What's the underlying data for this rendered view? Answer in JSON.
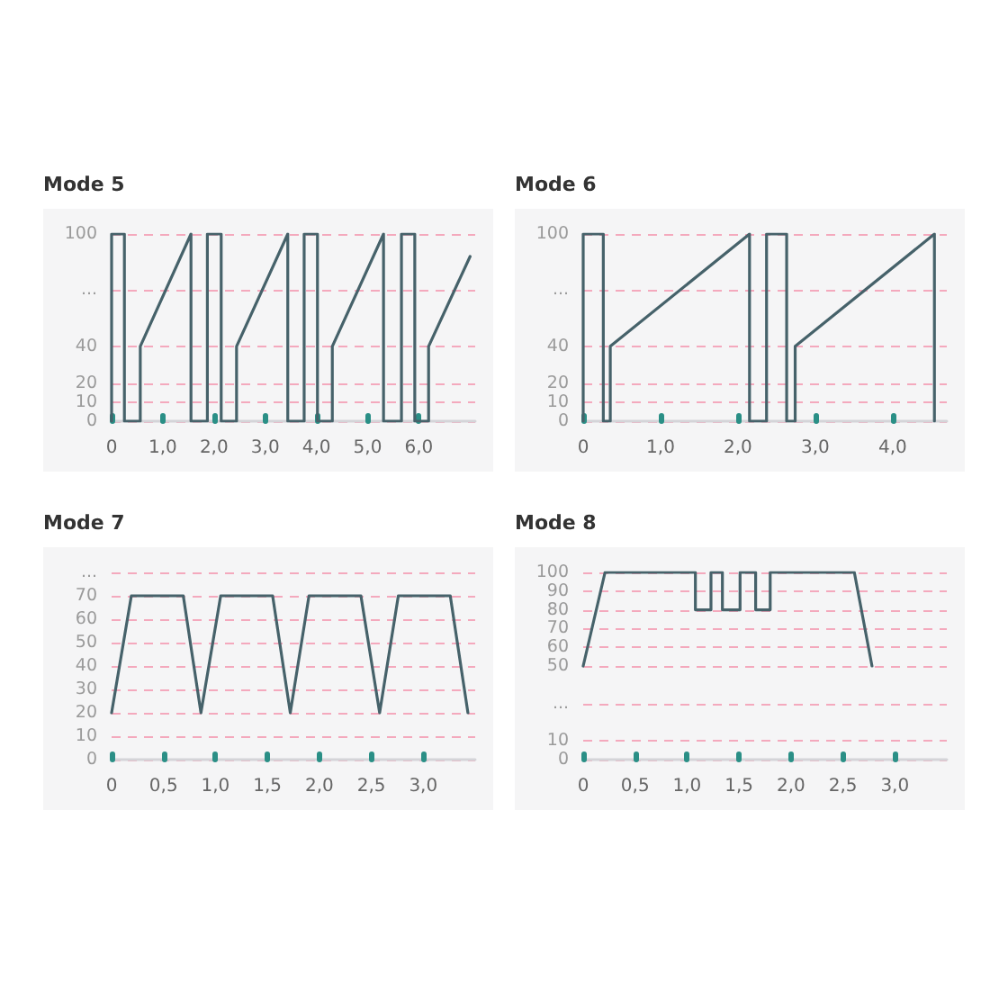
{
  "chart_data": [
    {
      "type": "line",
      "title": "Mode 5",
      "color": "#46626a",
      "grid": "y",
      "x": [
        0,
        0,
        0.25,
        0.25,
        0.56,
        0.56,
        1.55,
        1.55,
        1.87,
        1.87,
        2.14,
        2.14,
        2.44,
        2.44,
        3.44,
        3.44,
        3.76,
        3.76,
        4.02,
        4.02,
        4.31,
        4.31,
        5.31,
        5.31,
        5.66,
        5.66,
        5.92,
        5.92,
        6.19,
        6.19,
        7.0
      ],
      "values": [
        0,
        100,
        100,
        0,
        0,
        40,
        100,
        0,
        0,
        100,
        100,
        0,
        0,
        40,
        100,
        0,
        0,
        100,
        100,
        0,
        0,
        40,
        100,
        0,
        0,
        100,
        100,
        0,
        0,
        40,
        88
      ],
      "xlim": [
        0,
        7.1
      ],
      "xticks": [
        {
          "value": 0,
          "label": "0"
        },
        {
          "value": 1,
          "label": "1,0"
        },
        {
          "value": 2,
          "label": "2,0"
        },
        {
          "value": 3,
          "label": "3,0"
        },
        {
          "value": 4,
          "label": "4,0"
        },
        {
          "value": 5,
          "label": "5,0"
        },
        {
          "value": 6,
          "label": "6,0"
        }
      ],
      "ylim": [
        0,
        100
      ],
      "yticks": [
        0,
        10,
        20,
        40,
        {
          "value": 70,
          "label": "..."
        },
        100
      ]
    },
    {
      "type": "line",
      "title": "Mode 6",
      "color": "#46626a",
      "grid": "y",
      "x": [
        0,
        0,
        0.26,
        0.26,
        0.35,
        0.35,
        2.15,
        2.15,
        2.37,
        2.37,
        2.63,
        2.63,
        2.74,
        2.74,
        4.54,
        4.54
      ],
      "values": [
        0,
        100,
        100,
        0,
        0,
        40,
        100,
        0,
        0,
        100,
        100,
        0,
        0,
        40,
        100,
        0
      ],
      "xlim": [
        0,
        4.7
      ],
      "xticks": [
        {
          "value": 0,
          "label": "0"
        },
        {
          "value": 1,
          "label": "1,0"
        },
        {
          "value": 2,
          "label": "2,0"
        },
        {
          "value": 3,
          "label": "3,0"
        },
        {
          "value": 4,
          "label": "4,0"
        }
      ],
      "ylim": [
        0,
        100
      ],
      "yticks": [
        0,
        10,
        20,
        40,
        {
          "value": 70,
          "label": "..."
        },
        100
      ]
    },
    {
      "type": "line",
      "title": "Mode 7",
      "color": "#46626a",
      "grid": "y",
      "x": [
        0,
        0.19,
        0.69,
        0.86,
        1.05,
        1.55,
        1.72,
        1.9,
        2.4,
        2.58,
        2.76,
        3.26,
        3.43
      ],
      "values": [
        20,
        70,
        70,
        20,
        70,
        70,
        20,
        70,
        70,
        20,
        70,
        70,
        20
      ],
      "xlim": [
        0,
        3.5
      ],
      "xticks": [
        {
          "value": 0,
          "label": "0"
        },
        {
          "value": 0.5,
          "label": "0,5"
        },
        {
          "value": 1,
          "label": "1,0"
        },
        {
          "value": 1.5,
          "label": "1,5"
        },
        {
          "value": 2,
          "label": "2,0"
        },
        {
          "value": 2.5,
          "label": "2,5"
        },
        {
          "value": 3,
          "label": "3,0"
        }
      ],
      "ylim": [
        0,
        80
      ],
      "yticks": [
        0,
        10,
        20,
        30,
        40,
        50,
        60,
        70,
        {
          "value": 80,
          "label": "..."
        }
      ]
    },
    {
      "type": "line",
      "title": "Mode 8",
      "color": "#46626a",
      "grid": "y",
      "x": [
        0,
        0.21,
        1.08,
        1.08,
        1.23,
        1.23,
        1.34,
        1.34,
        1.51,
        1.51,
        1.66,
        1.66,
        1.8,
        1.8,
        2.61,
        2.78
      ],
      "values": [
        50,
        100,
        100,
        80,
        80,
        100,
        100,
        80,
        80,
        100,
        100,
        80,
        80,
        100,
        100,
        50
      ],
      "xlim": [
        0,
        3.5
      ],
      "xticks": [
        {
          "value": 0,
          "label": "0"
        },
        {
          "value": 0.5,
          "label": "0,5"
        },
        {
          "value": 1,
          "label": "1,0"
        },
        {
          "value": 1.5,
          "label": "1,5"
        },
        {
          "value": 2,
          "label": "2,0"
        },
        {
          "value": 2.5,
          "label": "2,5"
        },
        {
          "value": 3,
          "label": "3,0"
        }
      ],
      "ylim": [
        0,
        100
      ],
      "yticks": [
        0,
        10,
        {
          "value": 30,
          "label": "..."
        },
        50,
        60,
        70,
        80,
        90,
        100
      ]
    }
  ]
}
